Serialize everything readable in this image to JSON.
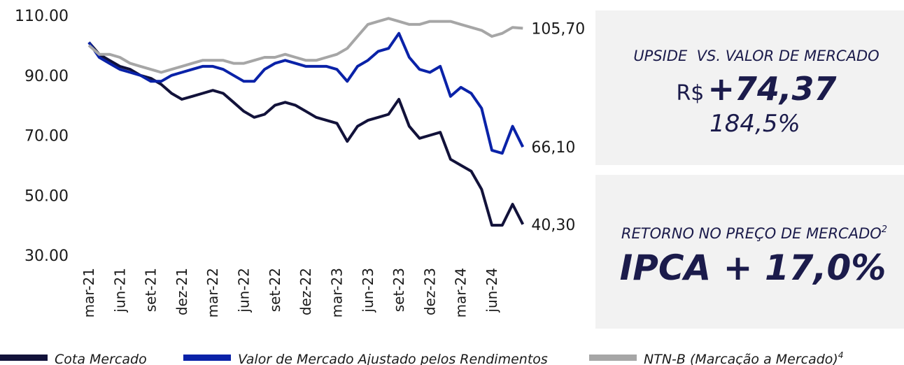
{
  "chart_data": {
    "type": "line",
    "categories": [
      "mar-21",
      null,
      null,
      "jun-21",
      null,
      null,
      "set-21",
      null,
      null,
      "dez-21",
      null,
      null,
      "mar-22",
      null,
      null,
      "jun-22",
      null,
      null,
      "set-22",
      null,
      null,
      "dez-22",
      null,
      null,
      "mar-23",
      null,
      null,
      "jun-23",
      null,
      null,
      "set-23",
      null,
      null,
      "dez-23",
      null,
      null,
      "mar-24",
      null,
      null,
      "jun-24",
      null,
      null,
      null
    ],
    "ylim": [
      30,
      110
    ],
    "yticks": [
      {
        "value": 30,
        "label": "30.00"
      },
      {
        "value": 50,
        "label": "50.00"
      },
      {
        "value": 70,
        "label": "70.00"
      },
      {
        "value": 90,
        "label": "90.00"
      },
      {
        "value": 110,
        "label": "110.00"
      }
    ],
    "grid": false,
    "series": [
      {
        "name": "Cota Mercado",
        "color": "#12123a",
        "values": [
          101,
          97,
          95,
          93,
          92,
          90,
          89,
          87,
          84,
          82,
          83,
          84,
          85,
          84,
          81,
          78,
          76,
          77,
          80,
          81,
          80,
          78,
          76,
          75,
          74,
          68,
          73,
          75,
          76,
          77,
          82,
          73,
          69,
          70,
          71,
          62,
          60,
          58,
          52,
          40,
          40,
          47,
          40.3
        ],
        "value_labels": [
          null,
          null,
          null,
          null,
          null,
          null,
          null,
          null,
          null,
          null,
          null,
          null,
          null,
          null,
          null,
          null,
          null,
          null,
          null,
          null,
          null,
          null,
          null,
          null,
          null,
          null,
          null,
          null,
          null,
          null,
          null,
          null,
          null,
          null,
          null,
          null,
          null,
          null,
          null,
          null,
          null,
          null,
          "40,30"
        ]
      },
      {
        "name": "Valor de Mercado Ajustado pelos Rendimentos",
        "color": "#0a22a8",
        "values": [
          101,
          96,
          94,
          92,
          91,
          90,
          88,
          88,
          90,
          91,
          92,
          93,
          93,
          92,
          90,
          88,
          88,
          92,
          94,
          95,
          94,
          93,
          93,
          93,
          92,
          88,
          93,
          95,
          98,
          99,
          104,
          96,
          92,
          91,
          93,
          83,
          86,
          84,
          79,
          65,
          64,
          73,
          66.1
        ],
        "value_labels": [
          null,
          null,
          null,
          null,
          null,
          null,
          null,
          null,
          null,
          null,
          null,
          null,
          null,
          null,
          null,
          null,
          null,
          null,
          null,
          null,
          null,
          null,
          null,
          null,
          null,
          null,
          null,
          null,
          null,
          null,
          null,
          null,
          null,
          null,
          null,
          null,
          null,
          null,
          null,
          null,
          null,
          null,
          "66,10"
        ]
      },
      {
        "name": "NTN-B (Marcação a Mercado)",
        "footnote": "4",
        "color": "#a6a6a6",
        "values": [
          100,
          97,
          97,
          96,
          94,
          93,
          92,
          91,
          92,
          93,
          94,
          95,
          95,
          95,
          94,
          94,
          95,
          96,
          96,
          97,
          96,
          95,
          95,
          96,
          97,
          99,
          103,
          107,
          108,
          109,
          108,
          107,
          107,
          108,
          108,
          108,
          107,
          106,
          105,
          103,
          104,
          106,
          105.7
        ],
        "value_labels": [
          null,
          null,
          null,
          null,
          null,
          null,
          null,
          null,
          null,
          null,
          null,
          null,
          null,
          null,
          null,
          null,
          null,
          null,
          null,
          null,
          null,
          null,
          null,
          null,
          null,
          null,
          null,
          null,
          null,
          null,
          null,
          null,
          null,
          null,
          null,
          null,
          null,
          null,
          null,
          null,
          null,
          null,
          "105,70"
        ]
      }
    ]
  },
  "panels": [
    {
      "title": "UPSIDE  VS. VALOR DE MERCADO",
      "currency": "R$",
      "value": "+74,37",
      "percent": "184,5%"
    },
    {
      "title": "RETORNO NO PREÇO DE MERCADO",
      "footnote": "2",
      "value": "IPCA + 17,0%"
    }
  ]
}
